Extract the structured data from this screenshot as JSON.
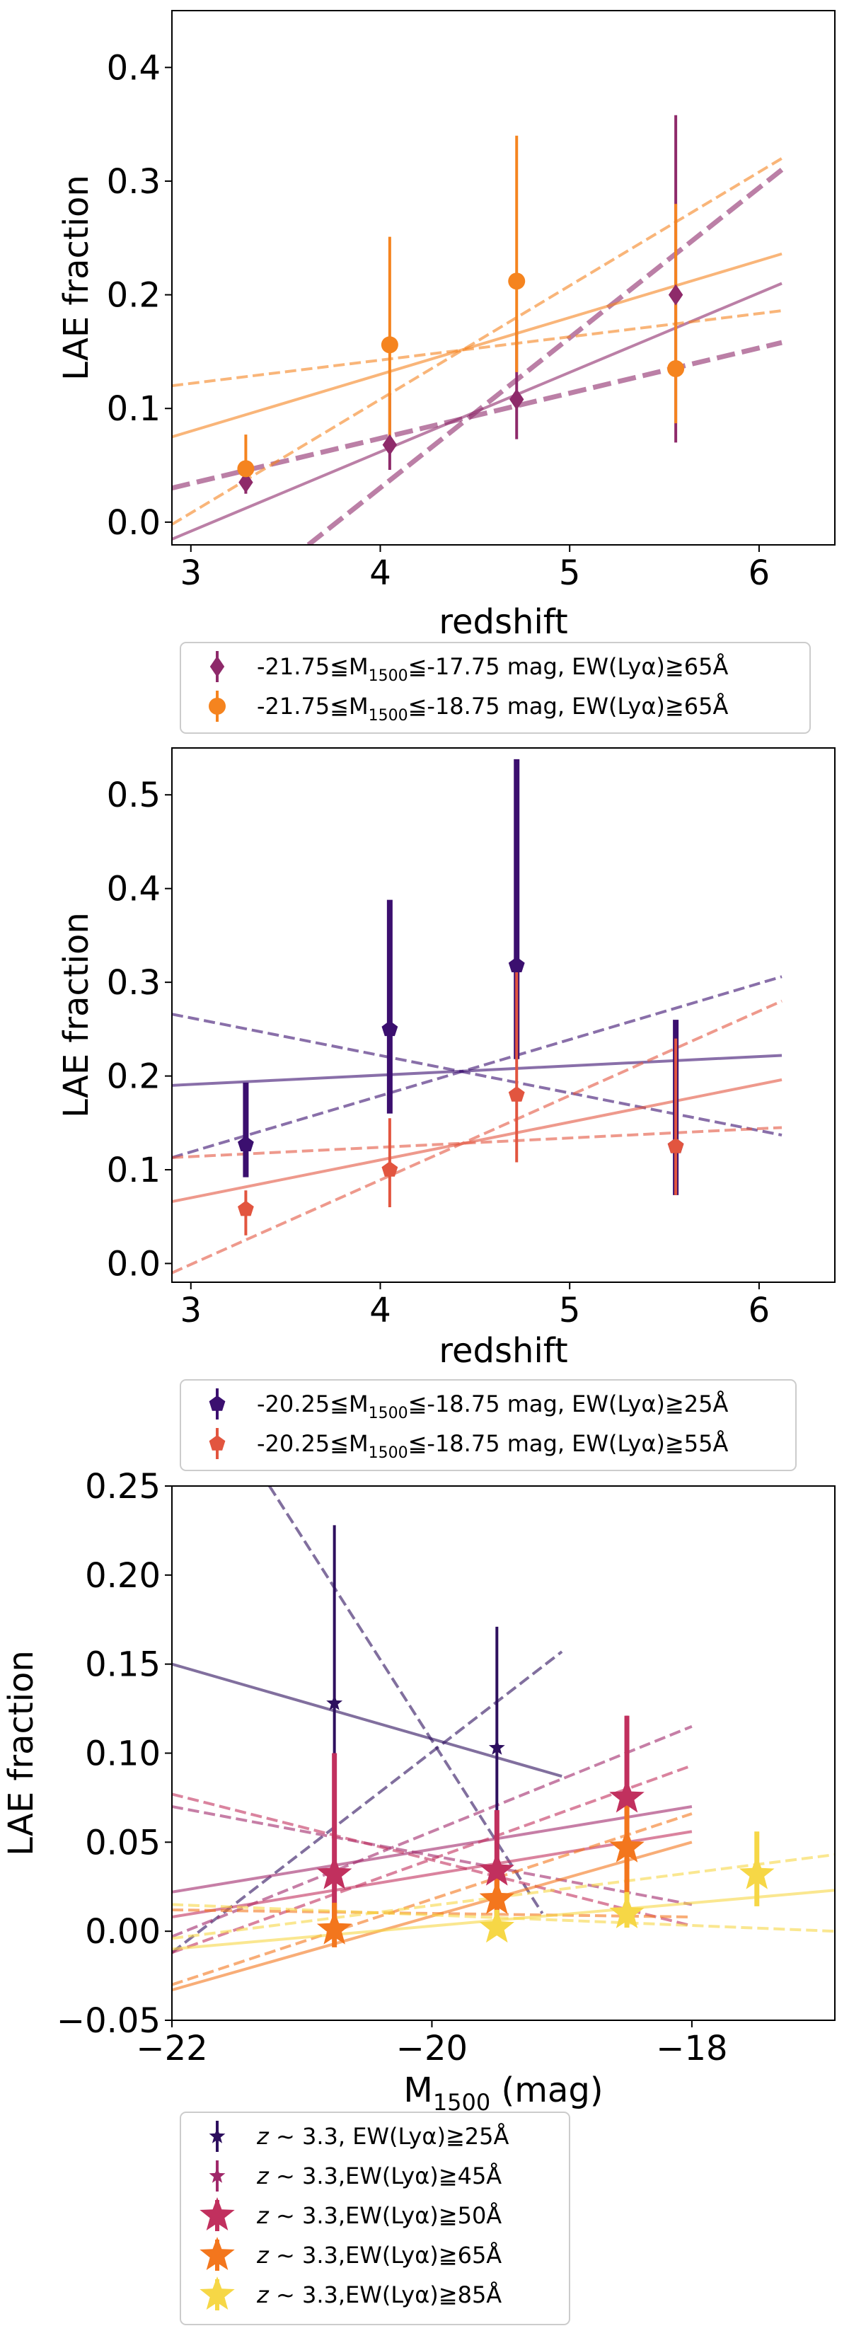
{
  "chart_data": [
    {
      "type": "scatter",
      "xlabel": "redshift",
      "ylabel": "LAE fraction",
      "xlim": [
        2.9,
        6.4
      ],
      "ylim": [
        -0.02,
        0.45
      ],
      "xticks": [
        3,
        4,
        5,
        6
      ],
      "yticks": [
        0.0,
        0.1,
        0.2,
        0.3,
        0.4
      ],
      "xtick_labels": [
        "3",
        "4",
        "5",
        "6"
      ],
      "ytick_labels": [
        "0.0",
        "0.1",
        "0.2",
        "0.3",
        "0.4"
      ],
      "series": [
        {
          "name": "-21.75≦M1500≦-17.75 mag, EW(Lyα)≧65Å",
          "color": "#8e2a6a",
          "marker": "diamond",
          "points": [
            {
              "x": 3.29,
              "y": 0.035,
              "err_lo": 0.01,
              "err_hi": 0.012
            },
            {
              "x": 4.05,
              "y": 0.068,
              "err_lo": 0.022,
              "err_hi": 0.045
            },
            {
              "x": 4.72,
              "y": 0.108,
              "err_lo": 0.035,
              "err_hi": 0.07
            },
            {
              "x": 5.56,
              "y": 0.2,
              "err_lo": 0.13,
              "err_hi": 0.158
            }
          ],
          "fits": [
            {
              "style": "solid",
              "x": [
                2.9,
                6.12
              ],
              "y": [
                -0.015,
                0.21
              ]
            },
            {
              "style": "thick-dashed",
              "x": [
                2.9,
                6.12
              ],
              "y": [
                0.03,
                0.158
              ]
            },
            {
              "style": "thick-dashed",
              "x": [
                3.62,
                6.12
              ],
              "y": [
                -0.02,
                0.31
              ]
            }
          ]
        },
        {
          "name": "-21.75≦M1500≦-18.75 mag, EW(Lyα)≧65Å",
          "color": "#f5841f",
          "marker": "circle",
          "points": [
            {
              "x": 3.29,
              "y": 0.047,
              "err_lo": 0.015,
              "err_hi": 0.03
            },
            {
              "x": 4.05,
              "y": 0.156,
              "err_lo": 0.09,
              "err_hi": 0.095
            },
            {
              "x": 4.72,
              "y": 0.212,
              "err_lo": 0.08,
              "err_hi": 0.128
            },
            {
              "x": 5.56,
              "y": 0.135,
              "err_lo": 0.048,
              "err_hi": 0.145
            }
          ],
          "fits": [
            {
              "style": "solid",
              "x": [
                2.9,
                6.12
              ],
              "y": [
                0.075,
                0.236
              ]
            },
            {
              "style": "dashed",
              "x": [
                2.9,
                6.12
              ],
              "y": [
                0.12,
                0.186
              ]
            },
            {
              "style": "dashed",
              "x": [
                2.9,
                6.12
              ],
              "y": [
                -0.002,
                0.32
              ]
            }
          ]
        }
      ]
    },
    {
      "type": "scatter",
      "xlabel": "redshift",
      "ylabel": "LAE fraction",
      "xlim": [
        2.9,
        6.4
      ],
      "ylim": [
        -0.02,
        0.55
      ],
      "xticks": [
        3,
        4,
        5,
        6
      ],
      "yticks": [
        0.0,
        0.1,
        0.2,
        0.3,
        0.4,
        0.5
      ],
      "xtick_labels": [
        "3",
        "4",
        "5",
        "6"
      ],
      "ytick_labels": [
        "0.0",
        "0.1",
        "0.2",
        "0.3",
        "0.4",
        "0.5"
      ],
      "series": [
        {
          "name": "-20.25≦M1500≦-18.75 mag, EW(Lyα)≧25Å",
          "color": "#3b0f6f",
          "marker": "pentagon",
          "points": [
            {
              "x": 3.29,
              "y": 0.127,
              "err_lo": 0.035,
              "err_hi": 0.066
            },
            {
              "x": 4.05,
              "y": 0.25,
              "err_lo": 0.09,
              "err_hi": 0.138
            },
            {
              "x": 4.72,
              "y": 0.318,
              "err_lo": 0.1,
              "err_hi": 0.22
            },
            {
              "x": 5.56,
              "y": 0.125,
              "err_lo": 0.052,
              "err_hi": 0.135
            }
          ],
          "fits": [
            {
              "style": "solid",
              "x": [
                2.9,
                6.12
              ],
              "y": [
                0.19,
                0.222
              ]
            },
            {
              "style": "dashed",
              "x": [
                2.9,
                6.12
              ],
              "y": [
                0.266,
                0.137
              ]
            },
            {
              "style": "dashed",
              "x": [
                2.9,
                6.12
              ],
              "y": [
                0.113,
                0.306
              ]
            }
          ]
        },
        {
          "name": "-20.25≦M1500≦-18.75 mag, EW(Lyα)≧55Å",
          "color": "#e2553f",
          "marker": "pentagon",
          "points": [
            {
              "x": 3.29,
              "y": 0.058,
              "err_lo": 0.028,
              "err_hi": 0.02
            },
            {
              "x": 4.05,
              "y": 0.1,
              "err_lo": 0.04,
              "err_hi": 0.055
            },
            {
              "x": 4.72,
              "y": 0.18,
              "err_lo": 0.072,
              "err_hi": 0.145
            },
            {
              "x": 5.56,
              "y": 0.125,
              "err_lo": 0.052,
              "err_hi": 0.115
            }
          ],
          "fits": [
            {
              "style": "solid",
              "x": [
                2.9,
                6.12
              ],
              "y": [
                0.066,
                0.196
              ]
            },
            {
              "style": "dashed",
              "x": [
                2.9,
                6.12
              ],
              "y": [
                0.113,
                0.145
              ]
            },
            {
              "style": "dashed",
              "x": [
                2.9,
                6.12
              ],
              "y": [
                -0.01,
                0.28
              ]
            }
          ]
        }
      ]
    },
    {
      "type": "scatter",
      "xlabel": "M1500 (mag)",
      "ylabel": "LAE fraction",
      "xlim": [
        -22,
        -16.9
      ],
      "ylim": [
        -0.05,
        0.25
      ],
      "xticks": [
        -22,
        -20,
        -18
      ],
      "yticks": [
        -0.05,
        0.0,
        0.05,
        0.1,
        0.15,
        0.2,
        0.25
      ],
      "xtick_labels": [
        "−22",
        "−20",
        "−18"
      ],
      "ytick_labels": [
        "−0.05",
        "0.00",
        "0.05",
        "0.10",
        "0.15",
        "0.20",
        "0.25"
      ],
      "series": [
        {
          "name": "z ~ 3.3, EW(Lyα)≧25Å",
          "color": "#2d0f5e",
          "marker": "star",
          "size": "small",
          "points": [
            {
              "x": -20.75,
              "y": 0.128,
              "err_lo": 0.05,
              "err_hi": 0.1
            },
            {
              "x": -19.5,
              "y": 0.103,
              "err_lo": 0.04,
              "err_hi": 0.068
            }
          ],
          "fits": [
            {
              "style": "solid",
              "x": [
                -22,
                -19
              ],
              "y": [
                0.15,
                0.087
              ]
            },
            {
              "style": "dashed",
              "x": [
                -22,
                -19
              ],
              "y": [
                -0.012,
                0.157
              ]
            },
            {
              "style": "dashed",
              "x": [
                -21.25,
                -19.15
              ],
              "y": [
                0.25,
                0.01
              ]
            }
          ]
        },
        {
          "name": "z ~ 3.3,EW(Lyα)≧45Å",
          "color": "#a0286a",
          "marker": "star",
          "size": "small",
          "points": [
            {
              "x": -20.75,
              "y": 0.032,
              "err_lo": 0.03,
              "err_hi": 0.068
            },
            {
              "x": -19.5,
              "y": 0.034,
              "err_lo": 0.03,
              "err_hi": 0.034
            },
            {
              "x": -18.5,
              "y": 0.075,
              "err_lo": 0.04,
              "err_hi": 0.046
            }
          ],
          "fits": [
            {
              "style": "solid",
              "x": [
                -22,
                -18
              ],
              "y": [
                0.022,
                0.07
              ]
            },
            {
              "style": "dashed",
              "x": [
                -22,
                -18
              ],
              "y": [
                0.07,
                0.015
              ]
            },
            {
              "style": "dashed",
              "x": [
                -22,
                -18
              ],
              "y": [
                -0.003,
                0.115
              ]
            }
          ]
        },
        {
          "name": "z ~ 3.3,EW(Lyα)≧50Å",
          "color": "#c1305e",
          "marker": "star",
          "size": "large",
          "points": [
            {
              "x": -20.75,
              "y": 0.032,
              "err_lo": 0.03,
              "err_hi": 0.068
            },
            {
              "x": -19.5,
              "y": 0.034,
              "err_lo": 0.03,
              "err_hi": 0.034
            },
            {
              "x": -18.5,
              "y": 0.075,
              "err_lo": 0.04,
              "err_hi": 0.046
            }
          ],
          "fits": [
            {
              "style": "solid",
              "x": [
                -22,
                -18
              ],
              "y": [
                0.008,
                0.056
              ]
            },
            {
              "style": "dashed",
              "x": [
                -22,
                -18
              ],
              "y": [
                0.077,
                0.003
              ]
            },
            {
              "style": "dashed",
              "x": [
                -22,
                -18
              ],
              "y": [
                -0.012,
                0.093
              ]
            }
          ]
        },
        {
          "name": "z ~ 3.3,EW(Lyα)≧65Å",
          "color": "#f3761d",
          "marker": "star",
          "size": "large",
          "points": [
            {
              "x": -20.75,
              "y": 0.001,
              "err_lo": 0.01,
              "err_hi": 0.015
            },
            {
              "x": -19.5,
              "y": 0.018,
              "err_lo": 0.015,
              "err_hi": 0.02
            },
            {
              "x": -18.5,
              "y": 0.047,
              "err_lo": 0.027,
              "err_hi": 0.032
            }
          ],
          "fits": [
            {
              "style": "solid",
              "x": [
                -22,
                -18
              ],
              "y": [
                -0.033,
                0.05
              ]
            },
            {
              "style": "dashed",
              "x": [
                -22,
                -18
              ],
              "y": [
                0.012,
                0.008
              ]
            },
            {
              "style": "dashed",
              "x": [
                -22,
                -18
              ],
              "y": [
                -0.03,
                0.066
              ]
            }
          ]
        },
        {
          "name": "z ~ 3.3,EW(Lyα)≧85Å",
          "color": "#f6d746",
          "marker": "star",
          "size": "large",
          "points": [
            {
              "x": -19.5,
              "y": 0.002,
              "err_lo": 0.003,
              "err_hi": 0.01
            },
            {
              "x": -18.5,
              "y": 0.01,
              "err_lo": 0.008,
              "err_hi": 0.012
            },
            {
              "x": -17.5,
              "y": 0.032,
              "err_lo": 0.018,
              "err_hi": 0.024
            }
          ],
          "fits": [
            {
              "style": "solid",
              "x": [
                -22,
                -16.9
              ],
              "y": [
                -0.01,
                0.023
              ]
            },
            {
              "style": "dashed",
              "x": [
                -22,
                -16.9
              ],
              "y": [
                0.015,
                0.0
              ]
            },
            {
              "style": "dashed",
              "x": [
                -22,
                -16.9
              ],
              "y": [
                -0.004,
                0.043
              ]
            }
          ]
        }
      ]
    }
  ]
}
